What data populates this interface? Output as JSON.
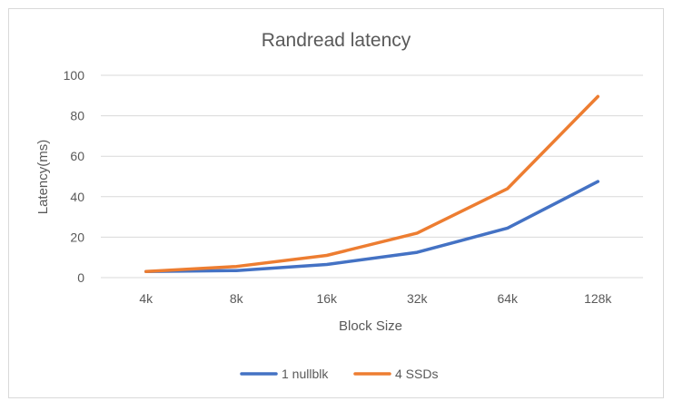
{
  "chart_data": {
    "type": "line",
    "title": "Randread latency",
    "xlabel": "Block Size",
    "ylabel": "Latency(ms)",
    "categories": [
      "4k",
      "8k",
      "16k",
      "32k",
      "64k",
      "128k"
    ],
    "ylim": [
      0,
      100
    ],
    "yticks": [
      0,
      20,
      40,
      60,
      80,
      100
    ],
    "grid": true,
    "legend_position": "bottom",
    "series": [
      {
        "name": "1 nullblk",
        "color": "#4472C4",
        "values": [
          3,
          3.5,
          6.5,
          12.5,
          24.5,
          47.5
        ]
      },
      {
        "name": "4 SSDs",
        "color": "#ED7D31",
        "values": [
          3,
          5.5,
          11,
          22,
          44,
          89.5
        ]
      }
    ]
  }
}
